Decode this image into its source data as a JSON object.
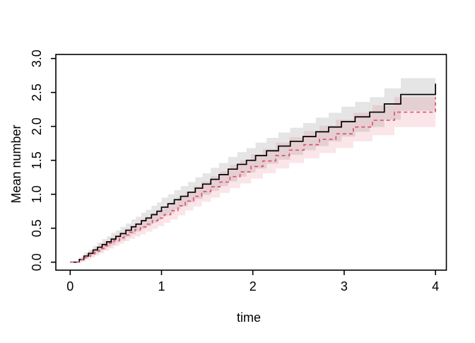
{
  "figure": {
    "background": "#ffffff",
    "plot_type": "mean-cumulative-function-step-plot"
  },
  "chart_data": {
    "type": "line",
    "step": true,
    "title": "",
    "xlabel": "time",
    "ylabel": "Mean number",
    "xlim": [
      0,
      4
    ],
    "ylim": [
      0,
      3
    ],
    "grid": false,
    "legend": "none",
    "x_ticks": {
      "values": [
        0,
        1,
        2,
        3,
        4
      ],
      "labels": [
        "0",
        "1",
        "2",
        "3",
        "4"
      ]
    },
    "y_ticks": {
      "values": [
        0,
        0.5,
        1,
        1.5,
        2,
        2.5,
        3
      ],
      "labels": [
        "0.0",
        "0.5",
        "1.0",
        "1.5",
        "2.0",
        "2.5",
        "3.0"
      ]
    },
    "series": [
      {
        "name": "group-1-solid-black",
        "line_color": "#000000",
        "line_style": "solid",
        "t": [
          0.1,
          0.15,
          0.2,
          0.25,
          0.3,
          0.35,
          0.4,
          0.45,
          0.5,
          0.55,
          0.61,
          0.67,
          0.72,
          0.78,
          0.83,
          0.89,
          0.95,
          1.0,
          1.07,
          1.14,
          1.21,
          1.29,
          1.37,
          1.45,
          1.54,
          1.63,
          1.73,
          1.83,
          1.93,
          2.03,
          2.15,
          2.28,
          2.41,
          2.55,
          2.69,
          2.83,
          2.97,
          3.12,
          3.28,
          3.44,
          3.62,
          4.0
        ],
        "value": [
          0.04,
          0.09,
          0.13,
          0.18,
          0.22,
          0.26,
          0.3,
          0.34,
          0.38,
          0.42,
          0.47,
          0.52,
          0.56,
          0.61,
          0.65,
          0.7,
          0.75,
          0.81,
          0.86,
          0.92,
          0.97,
          1.03,
          1.09,
          1.15,
          1.22,
          1.29,
          1.37,
          1.44,
          1.5,
          1.57,
          1.64,
          1.71,
          1.78,
          1.85,
          1.92,
          1.99,
          2.07,
          2.14,
          2.21,
          2.33,
          2.47,
          2.63
        ],
        "band": {
          "fill": "rgba(0,0,0,0.10)",
          "lower": [
            0.01,
            0.05,
            0.08,
            0.12,
            0.15,
            0.18,
            0.22,
            0.25,
            0.29,
            0.32,
            0.37,
            0.41,
            0.45,
            0.49,
            0.53,
            0.58,
            0.62,
            0.68,
            0.72,
            0.78,
            0.82,
            0.88,
            0.93,
            0.99,
            1.05,
            1.12,
            1.19,
            1.26,
            1.32,
            1.38,
            1.45,
            1.51,
            1.58,
            1.65,
            1.71,
            1.78,
            1.85,
            1.92,
            1.99,
            2.1,
            2.23,
            2.23
          ],
          "upper": [
            0.07,
            0.14,
            0.18,
            0.24,
            0.29,
            0.34,
            0.38,
            0.43,
            0.47,
            0.52,
            0.57,
            0.63,
            0.67,
            0.73,
            0.77,
            0.83,
            0.88,
            0.95,
            1.0,
            1.06,
            1.12,
            1.18,
            1.25,
            1.31,
            1.39,
            1.46,
            1.55,
            1.62,
            1.68,
            1.76,
            1.83,
            1.91,
            1.98,
            2.05,
            2.13,
            2.2,
            2.29,
            2.36,
            2.43,
            2.56,
            2.71,
            2.71
          ]
        }
      },
      {
        "name": "group-2-dashed-red",
        "line_color": "#DF536B",
        "line_style": "dashed",
        "t": [
          0.12,
          0.17,
          0.22,
          0.27,
          0.32,
          0.37,
          0.43,
          0.48,
          0.54,
          0.59,
          0.65,
          0.71,
          0.77,
          0.83,
          0.9,
          0.96,
          1.03,
          1.1,
          1.18,
          1.26,
          1.35,
          1.44,
          1.54,
          1.64,
          1.75,
          1.86,
          1.98,
          2.11,
          2.25,
          2.4,
          2.56,
          2.73,
          2.91,
          3.1,
          3.31,
          3.55,
          4.0
        ],
        "value": [
          0.04,
          0.08,
          0.12,
          0.16,
          0.2,
          0.24,
          0.28,
          0.32,
          0.36,
          0.4,
          0.44,
          0.48,
          0.52,
          0.56,
          0.61,
          0.65,
          0.7,
          0.76,
          0.83,
          0.9,
          0.97,
          1.04,
          1.11,
          1.18,
          1.26,
          1.33,
          1.41,
          1.49,
          1.57,
          1.65,
          1.73,
          1.81,
          1.89,
          1.99,
          2.09,
          2.21,
          2.43
        ],
        "band": {
          "fill": "rgba(223,83,107,0.15)",
          "lower": [
            0.01,
            0.04,
            0.07,
            0.1,
            0.13,
            0.17,
            0.2,
            0.24,
            0.27,
            0.31,
            0.34,
            0.38,
            0.41,
            0.45,
            0.49,
            0.53,
            0.58,
            0.63,
            0.69,
            0.76,
            0.82,
            0.89,
            0.95,
            1.02,
            1.09,
            1.16,
            1.23,
            1.31,
            1.38,
            1.46,
            1.53,
            1.61,
            1.68,
            1.78,
            1.87,
            1.99,
            1.99
          ],
          "upper": [
            0.07,
            0.12,
            0.17,
            0.22,
            0.27,
            0.31,
            0.36,
            0.4,
            0.45,
            0.49,
            0.54,
            0.58,
            0.63,
            0.67,
            0.73,
            0.77,
            0.83,
            0.89,
            0.97,
            1.04,
            1.12,
            1.19,
            1.27,
            1.34,
            1.43,
            1.5,
            1.59,
            1.67,
            1.76,
            1.84,
            1.93,
            2.01,
            2.1,
            2.2,
            2.31,
            2.43,
            2.43
          ]
        }
      }
    ]
  }
}
